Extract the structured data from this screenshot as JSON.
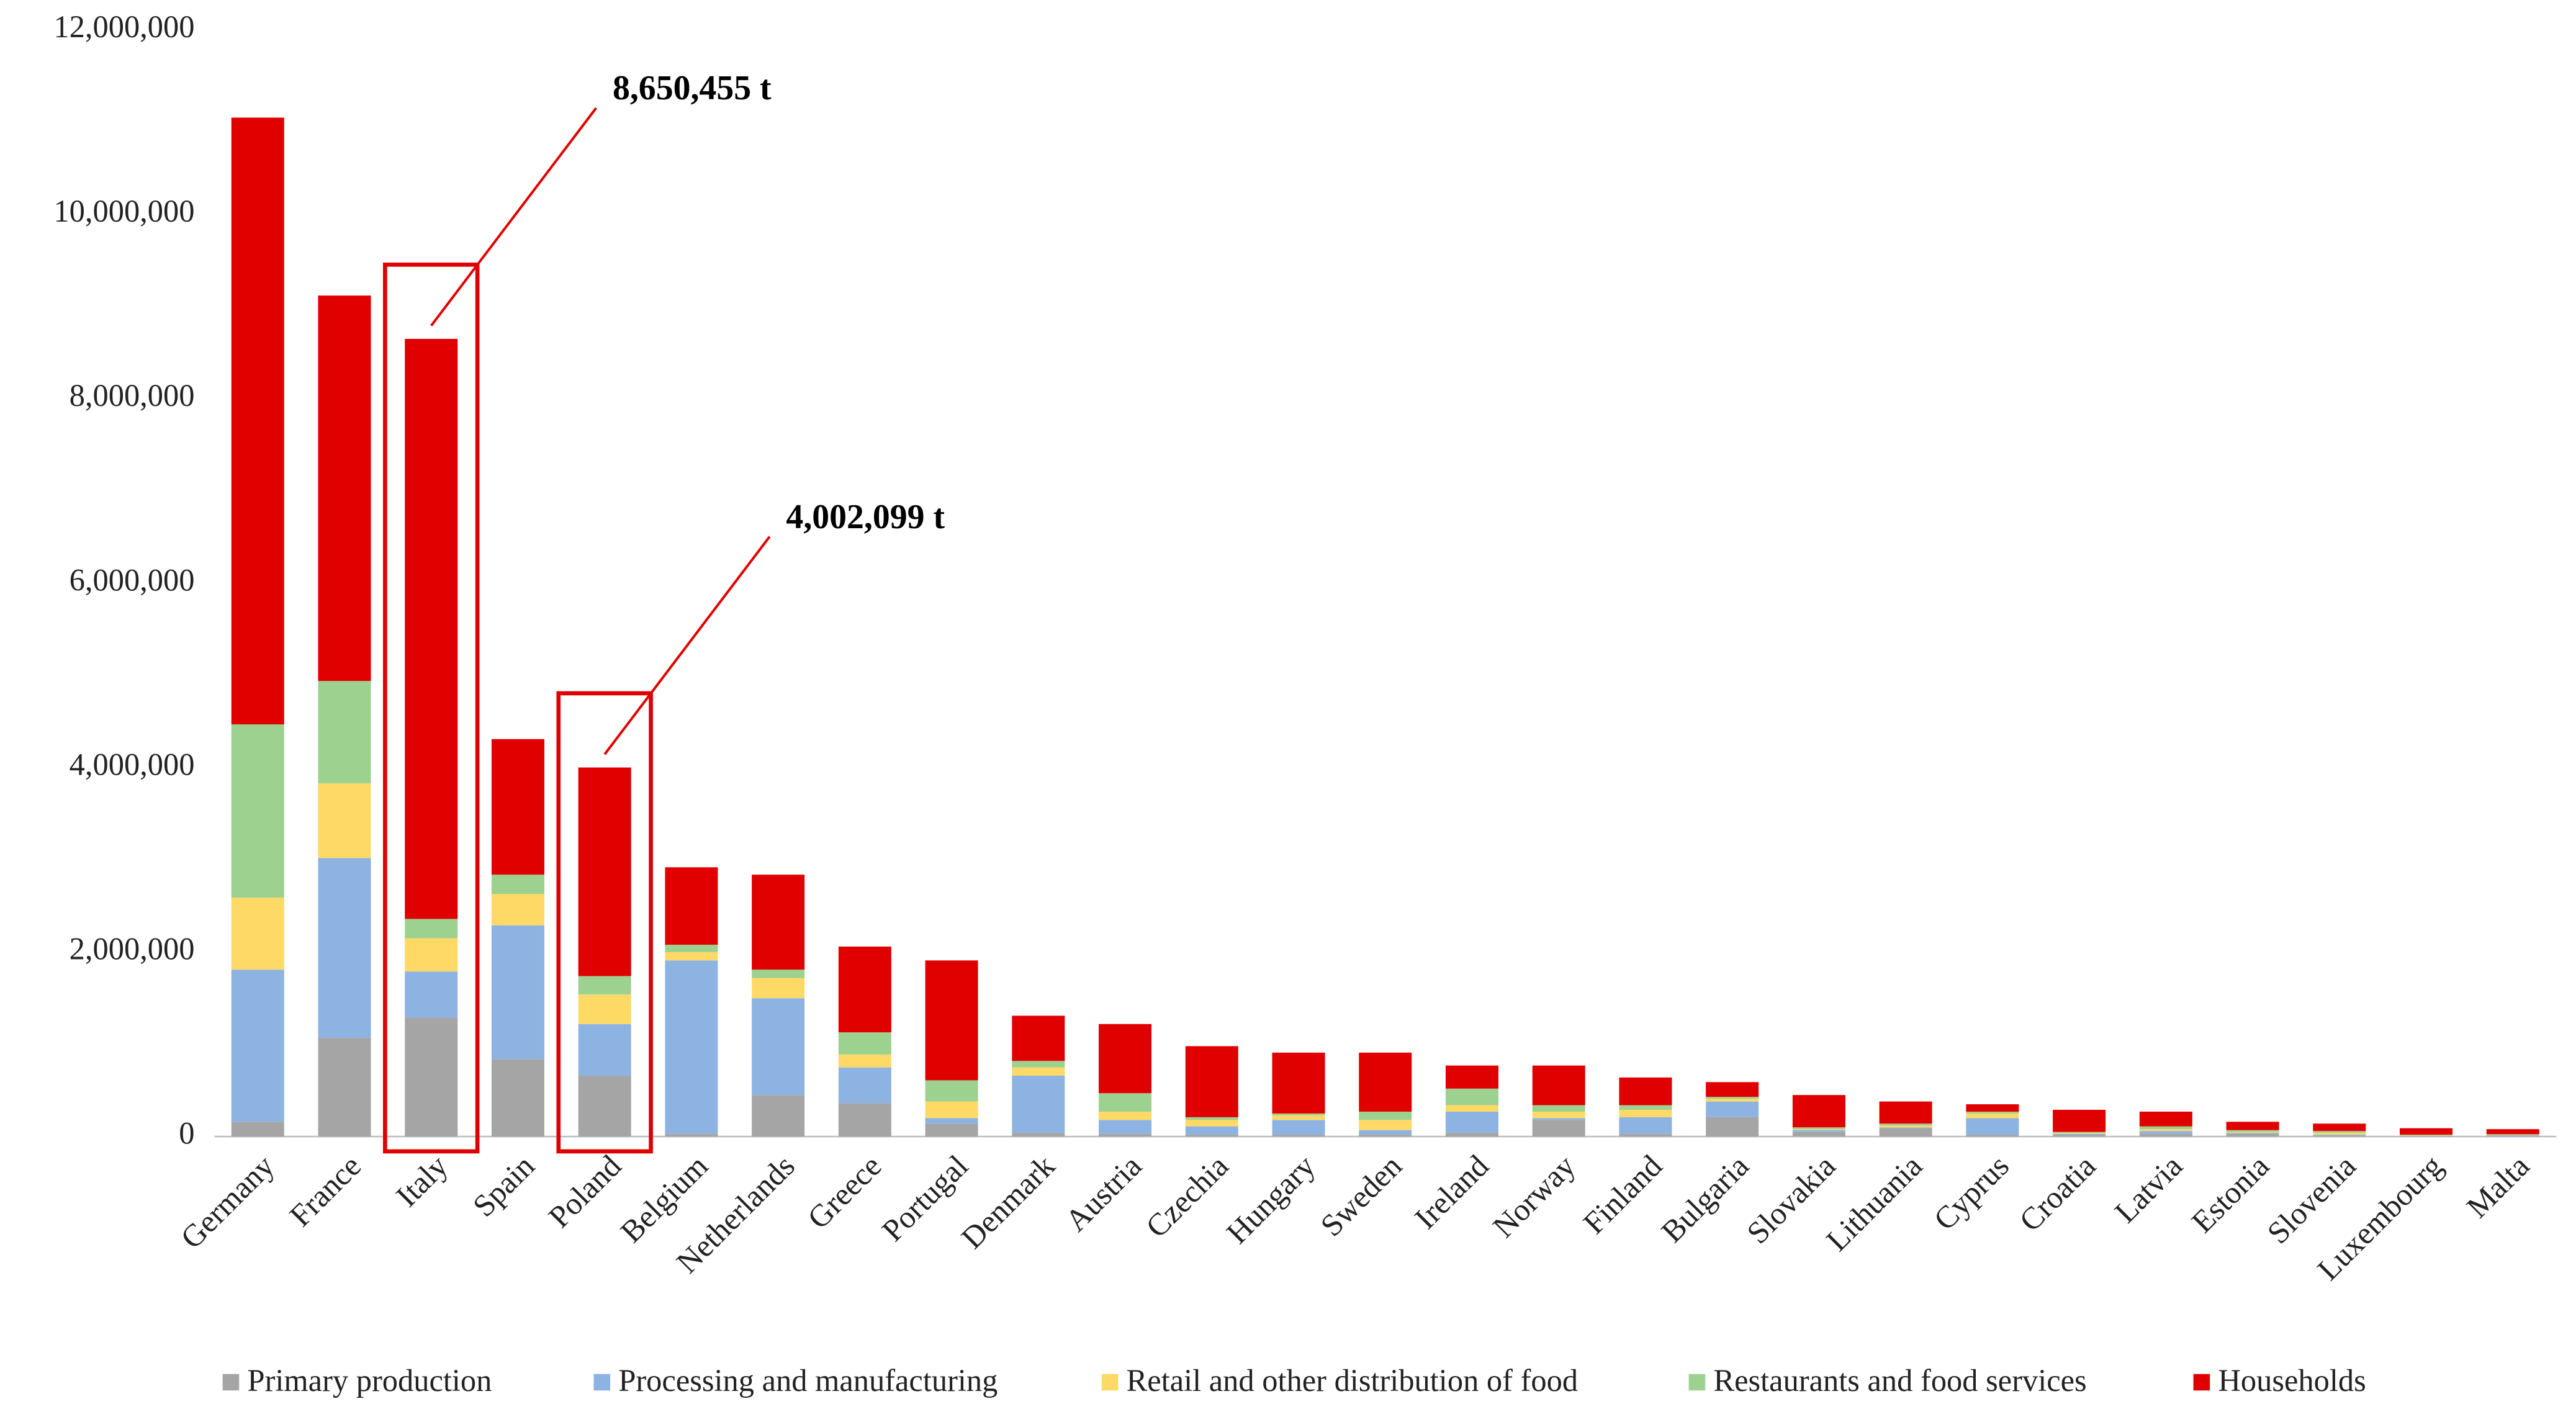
{
  "chart_data": {
    "type": "stacked_bar",
    "categories": [
      "Germany",
      "France",
      "Italy",
      "Spain",
      "Poland",
      "Belgium",
      "Netherlands",
      "Greece",
      "Portugal",
      "Denmark",
      "Austria",
      "Czechia",
      "Hungary",
      "Sweden",
      "Ireland",
      "Norway",
      "Finland",
      "Bulgaria",
      "Slovakia",
      "Lithuania",
      "Cyprus",
      "Croatia",
      "Latvia",
      "Estonia",
      "Slovenia",
      "Luxembourg",
      "Malta"
    ],
    "series": [
      {
        "name": "Primary production",
        "color": "#a5a5a5",
        "values": [
          160000,
          1070000,
          1290000,
          840000,
          660000,
          30000,
          450000,
          360000,
          140000,
          40000,
          30000,
          20000,
          20000,
          20000,
          40000,
          180000,
          30000,
          210000,
          50000,
          90000,
          20000,
          20000,
          30000,
          30000,
          10000,
          5000,
          5000
        ]
      },
      {
        "name": "Processing and manufacturing",
        "color": "#8db3e2",
        "values": [
          1650000,
          1950000,
          500000,
          1450000,
          560000,
          1880000,
          1050000,
          390000,
          60000,
          620000,
          150000,
          90000,
          160000,
          50000,
          230000,
          20000,
          180000,
          170000,
          20000,
          10000,
          180000,
          10000,
          30000,
          10000,
          10000,
          5000,
          10000
        ]
      },
      {
        "name": "Retail and other distribution of food",
        "color": "#ffd966",
        "values": [
          780000,
          810000,
          360000,
          340000,
          320000,
          90000,
          220000,
          140000,
          180000,
          90000,
          90000,
          70000,
          50000,
          110000,
          70000,
          70000,
          80000,
          30000,
          10000,
          20000,
          50000,
          10000,
          20000,
          10000,
          20000,
          5000,
          5000
        ]
      },
      {
        "name": "Restaurants and food services",
        "color": "#9cd18f",
        "values": [
          1880000,
          1110000,
          210000,
          210000,
          200000,
          80000,
          90000,
          240000,
          230000,
          70000,
          200000,
          30000,
          20000,
          90000,
          180000,
          70000,
          50000,
          20000,
          20000,
          20000,
          20000,
          10000,
          30000,
          20000,
          20000,
          5000,
          5000
        ]
      },
      {
        "name": "Households",
        "color": "#e00000",
        "values": [
          6580000,
          4180000,
          6290455,
          1470000,
          2262099,
          840000,
          1030000,
          930000,
          1300000,
          490000,
          750000,
          770000,
          660000,
          640000,
          250000,
          430000,
          300000,
          160000,
          350000,
          240000,
          80000,
          240000,
          160000,
          90000,
          80000,
          70000,
          55000
        ]
      }
    ],
    "ylim": [
      0,
      12000000
    ],
    "yticks": [
      0,
      {
        "value": 2000000,
        "label": "2,000,000"
      },
      {
        "value": 4000000,
        "label": "4,000,000"
      },
      {
        "value": 6000000,
        "label": "6,000,000"
      },
      {
        "value": 8000000,
        "label": "8,000,000"
      },
      {
        "value": 10000000,
        "label": "10,000,000"
      },
      {
        "value": 12000000,
        "label": "12,000,000"
      }
    ],
    "annotations": [
      {
        "text": "8,650,455 t",
        "category": "Italy"
      },
      {
        "text": "4,002,099 t",
        "category": "Poland"
      }
    ],
    "legend": "bottom"
  }
}
